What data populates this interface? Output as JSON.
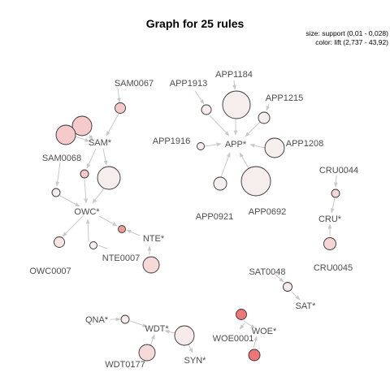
{
  "title": "Graph for 25 rules",
  "legend": {
    "size": "size: support (0,01 - 0,028)",
    "color": "color: lift (2,737 - 43,92)"
  },
  "labels": {
    "sam0067": "SAM0067",
    "sam": "SAM*",
    "sam0068": "SAM0068",
    "owc": "OWC*",
    "owc0007": "OWC0007",
    "nte": "NTE*",
    "nte0007": "NTE0007",
    "app1913": "APP1913",
    "app1184": "APP1184",
    "app1215": "APP1215",
    "app1916": "APP1916",
    "app": "APP*",
    "app1208": "APP1208",
    "app0921": "APP0921",
    "app0692": "APP0692",
    "cru0044": "CRU0044",
    "cru": "CRU*",
    "cru0045": "CRU0045",
    "sat0048": "SAT0048",
    "sat": "SAT*",
    "qna": "QNA*",
    "wdt": "WDT*",
    "wdt0177": "WDT0177",
    "syn": "SYN*",
    "woe0001": "WOE0001",
    "woe": "WOE*"
  },
  "colors": {
    "edge": "#c8c8c8",
    "node_stroke": "#333333",
    "lift_low": "#f7eeee",
    "lift_mid": "#f6caca",
    "lift_high": "#ef7676"
  }
}
